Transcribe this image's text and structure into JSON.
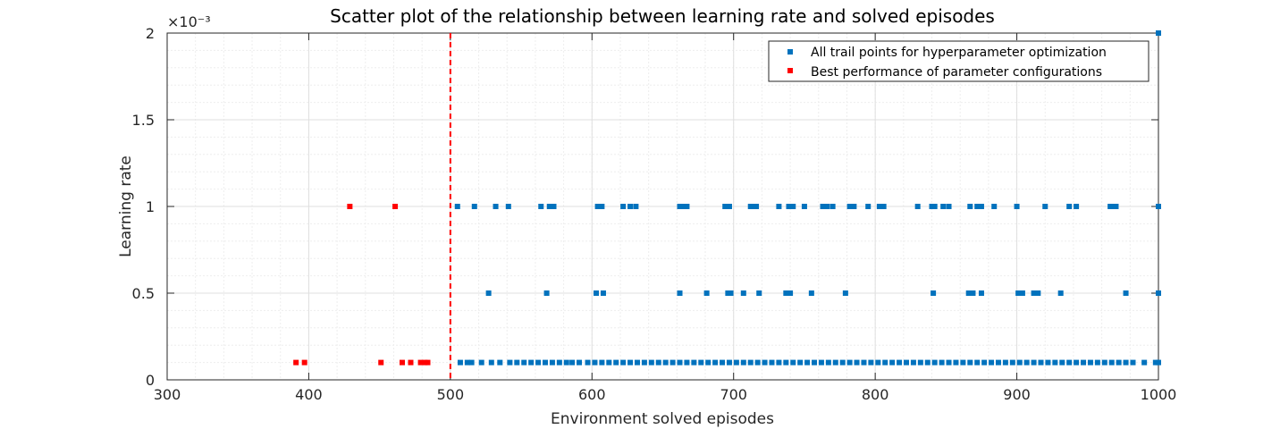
{
  "chart_data": {
    "type": "scatter",
    "title": "Scatter plot of the relationship between learning rate and solved episodes",
    "xlabel": "Environment solved episodes",
    "ylabel": "Learning rate",
    "y_exponent_label": "×10⁻³",
    "xlim": [
      300,
      1000
    ],
    "ylim": [
      0,
      0.002
    ],
    "x_ticks": [
      300,
      400,
      500,
      600,
      700,
      800,
      900,
      1000
    ],
    "y_ticks": [
      0,
      0.0005,
      0.001,
      0.0015,
      0.002
    ],
    "y_tick_labels": [
      "0",
      "0.5",
      "1",
      "1.5",
      "2"
    ],
    "grid": true,
    "legend_position": "top-right",
    "threshold_line": {
      "x": 500,
      "color": "#ff0000",
      "style": "dashed"
    },
    "series": [
      {
        "name": "All trail points for hyperparameter optimization",
        "color": "#0072bd",
        "marker": "square",
        "points": [
          [
            1000,
            0.002
          ],
          [
            505,
            0.001
          ],
          [
            517,
            0.001
          ],
          [
            532,
            0.001
          ],
          [
            541,
            0.001
          ],
          [
            564,
            0.001
          ],
          [
            570,
            0.001
          ],
          [
            573,
            0.001
          ],
          [
            604,
            0.001
          ],
          [
            607,
            0.001
          ],
          [
            622,
            0.001
          ],
          [
            627,
            0.001
          ],
          [
            631,
            0.001
          ],
          [
            662,
            0.001
          ],
          [
            664,
            0.001
          ],
          [
            667,
            0.001
          ],
          [
            694,
            0.001
          ],
          [
            697,
            0.001
          ],
          [
            712,
            0.001
          ],
          [
            714,
            0.001
          ],
          [
            716,
            0.001
          ],
          [
            732,
            0.001
          ],
          [
            739,
            0.001
          ],
          [
            742,
            0.001
          ],
          [
            750,
            0.001
          ],
          [
            763,
            0.001
          ],
          [
            766,
            0.001
          ],
          [
            770,
            0.001
          ],
          [
            782,
            0.001
          ],
          [
            785,
            0.001
          ],
          [
            795,
            0.001
          ],
          [
            803,
            0.001
          ],
          [
            806,
            0.001
          ],
          [
            830,
            0.001
          ],
          [
            840,
            0.001
          ],
          [
            842,
            0.001
          ],
          [
            848,
            0.001
          ],
          [
            852,
            0.001
          ],
          [
            867,
            0.001
          ],
          [
            872,
            0.001
          ],
          [
            875,
            0.001
          ],
          [
            884,
            0.001
          ],
          [
            900,
            0.001
          ],
          [
            920,
            0.001
          ],
          [
            937,
            0.001
          ],
          [
            942,
            0.001
          ],
          [
            966,
            0.001
          ],
          [
            968,
            0.001
          ],
          [
            970,
            0.001
          ],
          [
            1000,
            0.001
          ],
          [
            527,
            0.0005
          ],
          [
            568,
            0.0005
          ],
          [
            603,
            0.0005
          ],
          [
            608,
            0.0005
          ],
          [
            662,
            0.0005
          ],
          [
            681,
            0.0005
          ],
          [
            696,
            0.0005
          ],
          [
            698,
            0.0005
          ],
          [
            707,
            0.0005
          ],
          [
            718,
            0.0005
          ],
          [
            737,
            0.0005
          ],
          [
            740,
            0.0005
          ],
          [
            755,
            0.0005
          ],
          [
            779,
            0.0005
          ],
          [
            841,
            0.0005
          ],
          [
            866,
            0.0005
          ],
          [
            869,
            0.0005
          ],
          [
            875,
            0.0005
          ],
          [
            901,
            0.0005
          ],
          [
            904,
            0.0005
          ],
          [
            912,
            0.0005
          ],
          [
            915,
            0.0005
          ],
          [
            931,
            0.0005
          ],
          [
            977,
            0.0005
          ],
          [
            1000,
            0.0005
          ],
          [
            507,
            0.0001
          ],
          [
            512,
            0.0001
          ],
          [
            515,
            0.0001
          ],
          [
            522,
            0.0001
          ],
          [
            529,
            0.0001
          ],
          [
            535,
            0.0001
          ],
          [
            542,
            0.0001
          ],
          [
            547,
            0.0001
          ],
          [
            552,
            0.0001
          ],
          [
            557,
            0.0001
          ],
          [
            562,
            0.0001
          ],
          [
            567,
            0.0001
          ],
          [
            572,
            0.0001
          ],
          [
            577,
            0.0001
          ],
          [
            582,
            0.0001
          ],
          [
            586,
            0.0001
          ],
          [
            591,
            0.0001
          ],
          [
            597,
            0.0001
          ],
          [
            602,
            0.0001
          ],
          [
            607,
            0.0001
          ],
          [
            612,
            0.0001
          ],
          [
            617,
            0.0001
          ],
          [
            622,
            0.0001
          ],
          [
            627,
            0.0001
          ],
          [
            632,
            0.0001
          ],
          [
            637,
            0.0001
          ],
          [
            642,
            0.0001
          ],
          [
            647,
            0.0001
          ],
          [
            652,
            0.0001
          ],
          [
            657,
            0.0001
          ],
          [
            662,
            0.0001
          ],
          [
            667,
            0.0001
          ],
          [
            672,
            0.0001
          ],
          [
            677,
            0.0001
          ],
          [
            682,
            0.0001
          ],
          [
            687,
            0.0001
          ],
          [
            692,
            0.0001
          ],
          [
            697,
            0.0001
          ],
          [
            702,
            0.0001
          ],
          [
            707,
            0.0001
          ],
          [
            712,
            0.0001
          ],
          [
            717,
            0.0001
          ],
          [
            722,
            0.0001
          ],
          [
            727,
            0.0001
          ],
          [
            732,
            0.0001
          ],
          [
            737,
            0.0001
          ],
          [
            742,
            0.0001
          ],
          [
            747,
            0.0001
          ],
          [
            752,
            0.0001
          ],
          [
            757,
            0.0001
          ],
          [
            762,
            0.0001
          ],
          [
            767,
            0.0001
          ],
          [
            772,
            0.0001
          ],
          [
            777,
            0.0001
          ],
          [
            782,
            0.0001
          ],
          [
            787,
            0.0001
          ],
          [
            792,
            0.0001
          ],
          [
            797,
            0.0001
          ],
          [
            802,
            0.0001
          ],
          [
            807,
            0.0001
          ],
          [
            812,
            0.0001
          ],
          [
            817,
            0.0001
          ],
          [
            822,
            0.0001
          ],
          [
            827,
            0.0001
          ],
          [
            832,
            0.0001
          ],
          [
            837,
            0.0001
          ],
          [
            842,
            0.0001
          ],
          [
            847,
            0.0001
          ],
          [
            852,
            0.0001
          ],
          [
            857,
            0.0001
          ],
          [
            862,
            0.0001
          ],
          [
            867,
            0.0001
          ],
          [
            872,
            0.0001
          ],
          [
            877,
            0.0001
          ],
          [
            882,
            0.0001
          ],
          [
            887,
            0.0001
          ],
          [
            892,
            0.0001
          ],
          [
            897,
            0.0001
          ],
          [
            902,
            0.0001
          ],
          [
            907,
            0.0001
          ],
          [
            912,
            0.0001
          ],
          [
            917,
            0.0001
          ],
          [
            922,
            0.0001
          ],
          [
            927,
            0.0001
          ],
          [
            932,
            0.0001
          ],
          [
            937,
            0.0001
          ],
          [
            942,
            0.0001
          ],
          [
            947,
            0.0001
          ],
          [
            952,
            0.0001
          ],
          [
            957,
            0.0001
          ],
          [
            962,
            0.0001
          ],
          [
            967,
            0.0001
          ],
          [
            972,
            0.0001
          ],
          [
            977,
            0.0001
          ],
          [
            982,
            0.0001
          ],
          [
            990,
            0.0001
          ],
          [
            998,
            0.0001
          ],
          [
            1000,
            0.0001
          ]
        ]
      },
      {
        "name": "Best performance of parameter configurations",
        "color": "#ff0000",
        "marker": "square",
        "points": [
          [
            429,
            0.001
          ],
          [
            461,
            0.001
          ],
          [
            391,
            0.0001
          ],
          [
            397,
            0.0001
          ],
          [
            451,
            0.0001
          ],
          [
            466,
            0.0001
          ],
          [
            472,
            0.0001
          ],
          [
            479,
            0.0001
          ],
          [
            482,
            0.0001
          ],
          [
            484,
            0.0001
          ]
        ]
      }
    ]
  }
}
